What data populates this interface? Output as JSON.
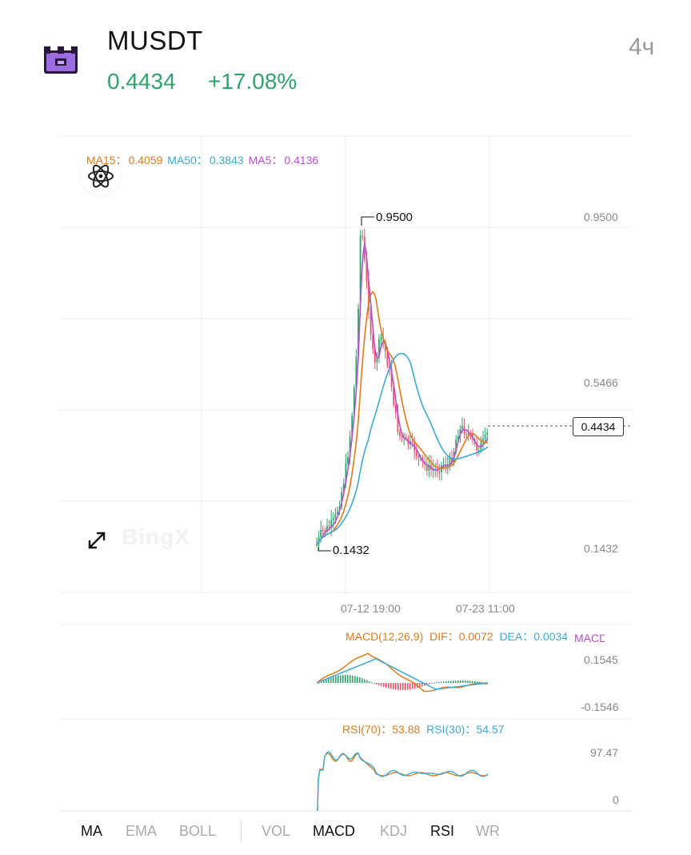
{
  "header": {
    "pair": "MUSDT",
    "price": "0.4434",
    "change": "+17.08%",
    "timeframe": "4ч",
    "logo_icon": "castle-token-icon"
  },
  "colors": {
    "up": "#2fa36b",
    "down": "#e8556b",
    "ma15": "#e07b1a",
    "ma50": "#3aa9d8",
    "ma5": "#b84fd0"
  },
  "main_chart": {
    "ma_legend": {
      "ma15_label": "MA15：",
      "ma15_value": "0.4059",
      "ma50_label": "MA50：",
      "ma50_value": "0.3843",
      "ma5_label": "MA5：",
      "ma5_value": "0.4136"
    },
    "watermark": "BingX",
    "y_ticks": [
      "0.9500",
      "0.5466",
      "0.1432"
    ],
    "x_ticks": [
      "07-12 19:00",
      "07-23 11:00"
    ],
    "current_price_tag": "0.4434",
    "high_label": "0.9500",
    "low_label": "0.1432"
  },
  "macd": {
    "title": "MACD(12,26,9)",
    "dif_label": "DIF：",
    "dif_value": "0.0072",
    "dea_label": "DEA：",
    "dea_value": "0.0034",
    "macd_label": "MACD",
    "y_ticks": [
      "0.1545",
      "-0.1546"
    ]
  },
  "rsi": {
    "rsi70_label": "RSI(70)：",
    "rsi70_value": "53.88",
    "rsi30_label": "RSI(30)：",
    "rsi30_value": "54.57",
    "y_ticks": [
      "97.47",
      "0"
    ]
  },
  "indicator_tabs": [
    {
      "label": "MA",
      "active": true
    },
    {
      "label": "EMA",
      "active": false
    },
    {
      "label": "BOLL",
      "active": false
    },
    {
      "label": "VOL",
      "active": false
    },
    {
      "label": "MACD",
      "active": true
    },
    {
      "label": "KDJ",
      "active": false
    },
    {
      "label": "RSI",
      "active": true
    },
    {
      "label": "WR",
      "active": false
    }
  ]
}
